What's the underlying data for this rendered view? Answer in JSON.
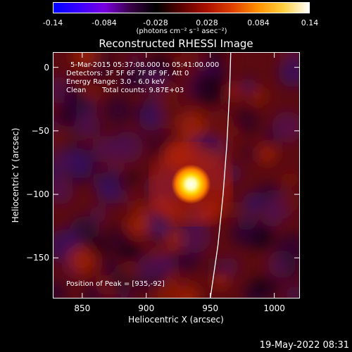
{
  "colorbar": {
    "ticks": [
      "-0.14",
      "-0.084",
      "-0.028",
      "0.028",
      "0.084",
      "0.14"
    ],
    "tick_values": [
      -0.14,
      -0.084,
      -0.028,
      0.028,
      0.084,
      0.14
    ],
    "units": "(photons cm⁻² s⁻¹ asec⁻²)",
    "colors": [
      "#0000ff",
      "#3a00ff",
      "#7a00e0",
      "#3a0048",
      "#000000",
      "#5a0000",
      "#aa1000",
      "#e04000",
      "#ff9000",
      "#ffd040",
      "#ffffff"
    ]
  },
  "chart_data": {
    "type": "heatmap",
    "title": "Reconstructed RHESSI Image",
    "xlabel": "Heliocentric X (arcsec)",
    "ylabel": "Heliocentric Y (arcsec)",
    "xlim": [
      827,
      1020
    ],
    "ylim": [
      -182,
      12
    ],
    "xticks": [
      850,
      900,
      950,
      1000
    ],
    "yticks": [
      0,
      -50,
      -100,
      -150
    ],
    "xtick_labels": [
      "850",
      "900",
      "950",
      "1000"
    ],
    "ytick_labels": [
      "0",
      "−50",
      "−100",
      "−150"
    ],
    "peak": [
      935,
      -92
    ],
    "value_range": [
      -0.14,
      0.14
    ],
    "limb_curve": [
      [
        966,
        12
      ],
      [
        965,
        -20
      ],
      [
        963,
        -60
      ],
      [
        960,
        -100
      ],
      [
        956,
        -140
      ],
      [
        950,
        -182
      ]
    ],
    "annotations": {
      "time": "5-Mar-2015 05:37:08.000 to 05:41:00.000",
      "detectors": "Detectors: 3F 5F 6F 7F 8F 9F, Att 0",
      "energy": "Energy Range: 3.0 - 6.0 keV",
      "clean": "Clean",
      "counts": "Total counts: 9.87E+03",
      "peak_position": "Position of Peak = [935,-92]"
    }
  },
  "timestamp": "19-May-2022 08:31"
}
